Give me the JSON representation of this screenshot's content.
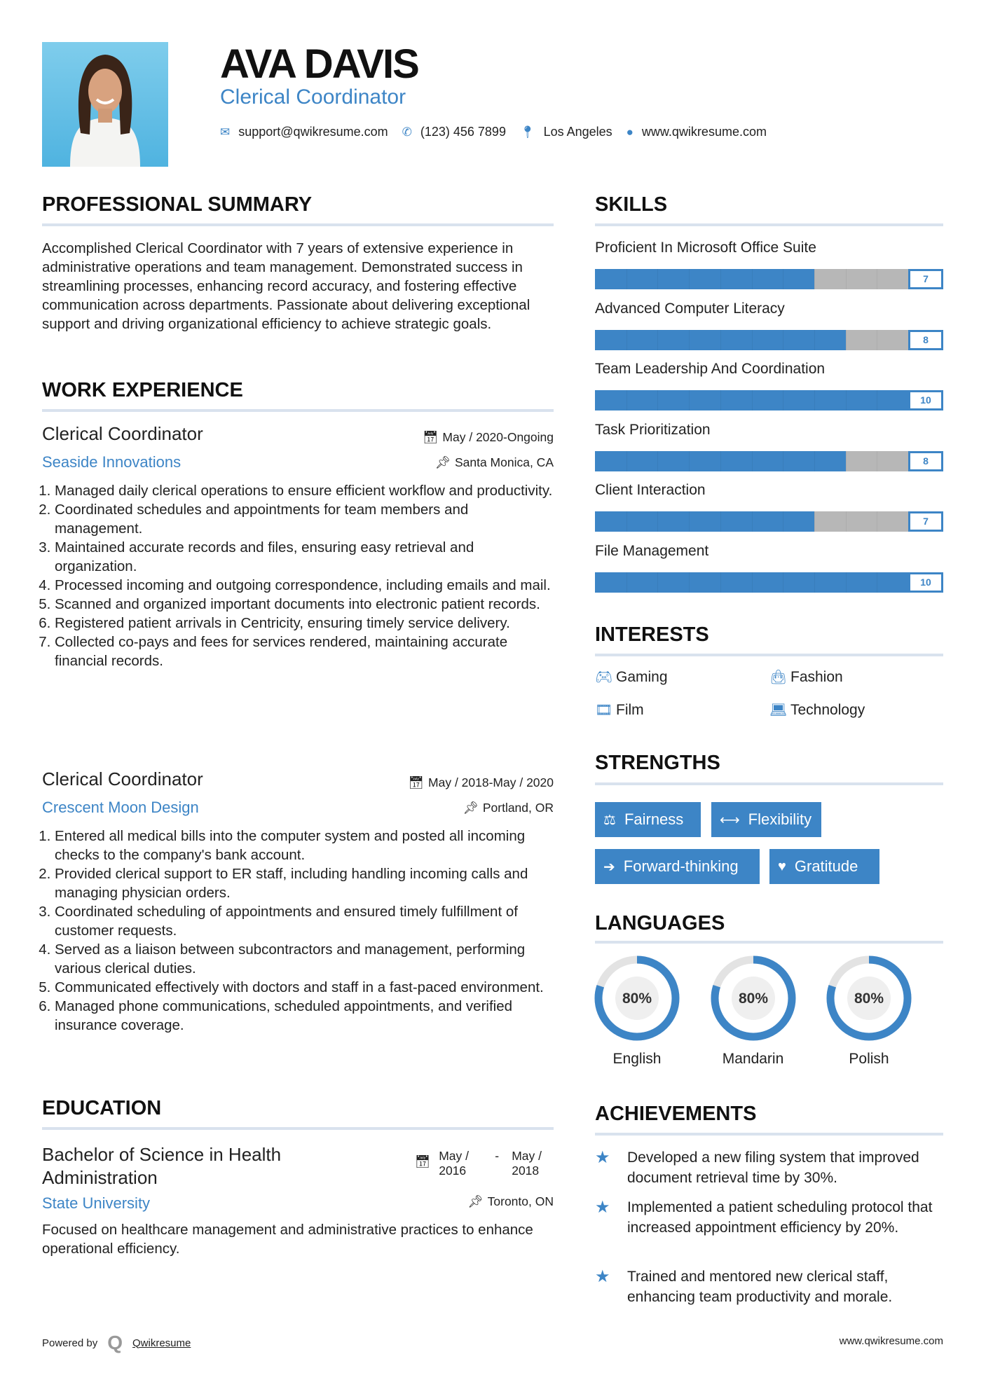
{
  "header": {
    "name": "AVA DAVIS",
    "title": "Clerical Coordinator",
    "contact": {
      "email": "support@qwikresume.com",
      "phone": "(123) 456 7899",
      "location": "Los Angeles",
      "website": "www.qwikresume.com"
    }
  },
  "summary": {
    "heading": "PROFESSIONAL SUMMARY",
    "text": "Accomplished Clerical Coordinator with 7 years of extensive experience in administrative operations and team management. Demonstrated success in streamlining processes, enhancing record accuracy, and fostering effective communication across departments. Passionate about delivering exceptional support and driving organizational efficiency to achieve strategic goals."
  },
  "experience": {
    "heading": "WORK EXPERIENCE",
    "jobs": [
      {
        "title": "Clerical Coordinator",
        "company": "Seaside Innovations",
        "dates": "May / 2020-Ongoing",
        "location": "Santa Monica, CA",
        "items": [
          "Managed daily clerical operations to ensure efficient workflow and productivity.",
          "Coordinated schedules and appointments for team members and management.",
          "Maintained accurate records and files, ensuring easy retrieval and organization.",
          "Processed incoming and outgoing correspondence, including emails and mail.",
          "Scanned and organized important documents into electronic patient records.",
          "Registered patient arrivals in Centricity, ensuring timely service delivery.",
          "Collected co-pays and fees for services rendered, maintaining accurate financial records."
        ]
      },
      {
        "title": "Clerical Coordinator",
        "company": "Crescent Moon Design",
        "dates": "May / 2018-May / 2020",
        "location": "Portland, OR",
        "items": [
          "Entered all medical bills into the computer system and posted all incoming checks to the company's bank account.",
          "Provided clerical support to ER staff, including handling incoming calls and managing physician orders.",
          "Coordinated scheduling of appointments and ensured timely fulfillment of customer requests.",
          "Served as a liaison between subcontractors and management, performing various clerical duties.",
          "Communicated effectively with doctors and staff in a fast-paced environment.",
          "Managed phone communications, scheduled appointments, and verified insurance coverage."
        ]
      }
    ]
  },
  "education": {
    "heading": "EDUCATION",
    "degree": "Bachelor of Science in Health Administration",
    "school": "State University",
    "start": "May / 2016",
    "end": "May / 2018",
    "location": "Toronto, ON",
    "description": "Focused on healthcare management and administrative practices to enhance operational efficiency."
  },
  "skills": {
    "heading": "SKILLS",
    "max": 10,
    "items": [
      {
        "name": "Proficient In Microsoft Office Suite",
        "level": 7
      },
      {
        "name": "Advanced Computer Literacy",
        "level": 8
      },
      {
        "name": "Team Leadership And Coordination",
        "level": 10
      },
      {
        "name": "Task Prioritization",
        "level": 8
      },
      {
        "name": "Client Interaction",
        "level": 7
      },
      {
        "name": "File Management",
        "level": 10
      }
    ]
  },
  "interests": {
    "heading": "INTERESTS",
    "items": [
      {
        "label": "Gaming",
        "icon": "gamepad-icon"
      },
      {
        "label": "Fashion",
        "icon": "shopping-bag-icon"
      },
      {
        "label": "Film",
        "icon": "film-icon"
      },
      {
        "label": "Technology",
        "icon": "laptop-icon"
      }
    ]
  },
  "strengths": {
    "heading": "STRENGTHS",
    "items": [
      {
        "label": "Fairness",
        "icon": "balance-scale-icon"
      },
      {
        "label": "Flexibility",
        "icon": "arrows-horizontal-icon"
      },
      {
        "label": "Forward-thinking",
        "icon": "arrow-right-icon"
      },
      {
        "label": "Gratitude",
        "icon": "heart-icon"
      }
    ]
  },
  "languages": {
    "heading": "LANGUAGES",
    "items": [
      {
        "name": "English",
        "percent": 80,
        "label": "80%"
      },
      {
        "name": "Mandarin",
        "percent": 80,
        "label": "80%"
      },
      {
        "name": "Polish",
        "percent": 80,
        "label": "80%"
      }
    ]
  },
  "achievements": {
    "heading": "ACHIEVEMENTS",
    "items": [
      "Developed a new filing system that improved document retrieval time by 30%.",
      "Implemented a patient scheduling protocol that increased appointment efficiency by 20%.",
      "Trained and mentored new clerical staff, enhancing team productivity and morale."
    ]
  },
  "footer": {
    "powered_by": "Powered by",
    "brand": "Qwikresume",
    "website": "www.qwikresume.com"
  },
  "colors": {
    "accent": "#3d85c6",
    "bar_empty": "#b7b7b7",
    "rule": "#d9e2ee"
  }
}
